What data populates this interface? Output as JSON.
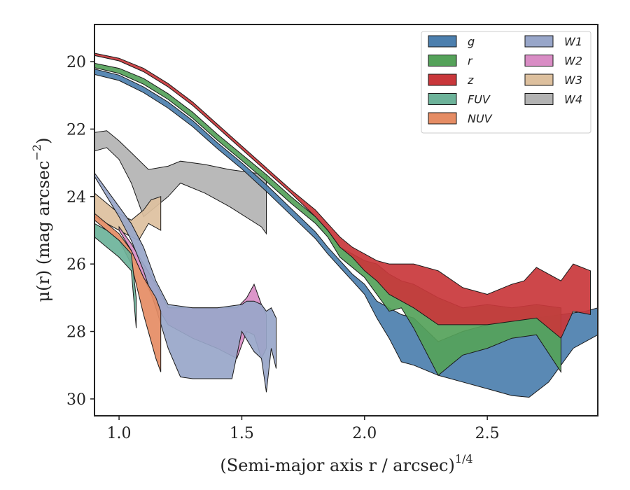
{
  "chart_data": {
    "type": "area",
    "title": "",
    "xlabel": "(Semi-major axis r / arcsec)",
    "xlabel_superscript": "1/4",
    "ylabel": "μ(r) (mag arcsec",
    "ylabel_superscript": "−2",
    "ylabel_tail": ")",
    "xlim": [
      0.9,
      2.95
    ],
    "ylim": [
      30.5,
      18.9
    ],
    "y_inverted": true,
    "xticks": [
      1.0,
      1.5,
      2.0,
      2.5
    ],
    "xtick_labels": [
      "1.0",
      "1.5",
      "2.0",
      "2.5"
    ],
    "yticks": [
      20,
      22,
      24,
      26,
      28,
      30
    ],
    "ytick_labels": [
      "20",
      "22",
      "24",
      "26",
      "28",
      "30"
    ],
    "grid": false,
    "legend_position": "top-right",
    "legend_columns": 2,
    "series": [
      {
        "name": "g",
        "color": "#4c7fae",
        "upper": [
          [
            0.9,
            20.22
          ],
          [
            1.0,
            20.4
          ],
          [
            1.1,
            20.75
          ],
          [
            1.2,
            21.2
          ],
          [
            1.3,
            21.75
          ],
          [
            1.4,
            22.4
          ],
          [
            1.5,
            23.0
          ],
          [
            1.6,
            23.65
          ],
          [
            1.7,
            24.35
          ],
          [
            1.8,
            25.05
          ],
          [
            1.85,
            25.5
          ],
          [
            1.9,
            25.9
          ],
          [
            1.95,
            26.3
          ],
          [
            2.0,
            26.6
          ],
          [
            2.05,
            27.1
          ],
          [
            2.1,
            27.3
          ],
          [
            2.15,
            27.5
          ],
          [
            2.2,
            27.6
          ],
          [
            2.3,
            28.3
          ],
          [
            2.4,
            28.0
          ],
          [
            2.5,
            27.8
          ],
          [
            2.6,
            27.7
          ],
          [
            2.7,
            27.6
          ],
          [
            2.8,
            27.5
          ],
          [
            2.9,
            27.4
          ],
          [
            2.95,
            27.3
          ]
        ],
        "lower": [
          [
            0.9,
            20.38
          ],
          [
            1.0,
            20.56
          ],
          [
            1.1,
            20.92
          ],
          [
            1.2,
            21.38
          ],
          [
            1.3,
            21.93
          ],
          [
            1.4,
            22.58
          ],
          [
            1.5,
            23.18
          ],
          [
            1.6,
            23.85
          ],
          [
            1.7,
            24.55
          ],
          [
            1.8,
            25.25
          ],
          [
            1.85,
            25.7
          ],
          [
            1.9,
            26.1
          ],
          [
            1.95,
            26.5
          ],
          [
            2.0,
            26.9
          ],
          [
            2.05,
            27.6
          ],
          [
            2.1,
            28.2
          ],
          [
            2.15,
            28.9
          ],
          [
            2.2,
            29.0
          ],
          [
            2.3,
            29.3
          ],
          [
            2.4,
            29.5
          ],
          [
            2.5,
            29.7
          ],
          [
            2.6,
            29.9
          ],
          [
            2.67,
            29.95
          ],
          [
            2.75,
            29.5
          ],
          [
            2.85,
            28.5
          ],
          [
            2.95,
            28.1
          ]
        ]
      },
      {
        "name": "r",
        "color": "#55a25a",
        "upper": [
          [
            0.9,
            20.05
          ],
          [
            1.0,
            20.2
          ],
          [
            1.1,
            20.5
          ],
          [
            1.2,
            20.95
          ],
          [
            1.3,
            21.5
          ],
          [
            1.4,
            22.15
          ],
          [
            1.5,
            22.75
          ],
          [
            1.6,
            23.35
          ],
          [
            1.7,
            24.0
          ],
          [
            1.8,
            24.6
          ],
          [
            1.85,
            25.0
          ],
          [
            1.9,
            25.5
          ],
          [
            2.0,
            25.9
          ],
          [
            2.05,
            26.0
          ],
          [
            2.1,
            26.3
          ],
          [
            2.15,
            26.5
          ],
          [
            2.2,
            26.6
          ],
          [
            2.3,
            27.0
          ],
          [
            2.4,
            27.3
          ],
          [
            2.5,
            27.2
          ],
          [
            2.6,
            27.3
          ],
          [
            2.7,
            27.2
          ],
          [
            2.8,
            27.3
          ]
        ],
        "lower": [
          [
            0.9,
            20.18
          ],
          [
            1.0,
            20.35
          ],
          [
            1.1,
            20.67
          ],
          [
            1.2,
            21.12
          ],
          [
            1.3,
            21.68
          ],
          [
            1.4,
            22.33
          ],
          [
            1.5,
            22.93
          ],
          [
            1.6,
            23.55
          ],
          [
            1.7,
            24.2
          ],
          [
            1.8,
            24.8
          ],
          [
            1.85,
            25.2
          ],
          [
            1.9,
            25.8
          ],
          [
            2.0,
            26.4
          ],
          [
            2.05,
            26.9
          ],
          [
            2.1,
            27.4
          ],
          [
            2.15,
            27.3
          ],
          [
            2.2,
            27.9
          ],
          [
            2.3,
            29.3
          ],
          [
            2.4,
            28.7
          ],
          [
            2.5,
            28.5
          ],
          [
            2.6,
            28.2
          ],
          [
            2.7,
            28.1
          ],
          [
            2.8,
            29.2
          ]
        ]
      },
      {
        "name": "z",
        "color": "#c9373b",
        "upper": [
          [
            0.9,
            19.75
          ],
          [
            1.0,
            19.9
          ],
          [
            1.1,
            20.2
          ],
          [
            1.2,
            20.65
          ],
          [
            1.3,
            21.2
          ],
          [
            1.4,
            21.85
          ],
          [
            1.5,
            22.5
          ],
          [
            1.6,
            23.15
          ],
          [
            1.7,
            23.8
          ],
          [
            1.8,
            24.4
          ],
          [
            1.85,
            24.8
          ],
          [
            1.9,
            25.2
          ],
          [
            1.95,
            25.5
          ],
          [
            2.0,
            25.7
          ],
          [
            2.05,
            25.9
          ],
          [
            2.1,
            26.0
          ],
          [
            2.2,
            26.0
          ],
          [
            2.3,
            26.2
          ],
          [
            2.4,
            26.7
          ],
          [
            2.5,
            26.9
          ],
          [
            2.6,
            26.6
          ],
          [
            2.65,
            26.5
          ],
          [
            2.7,
            26.1
          ],
          [
            2.8,
            26.5
          ],
          [
            2.85,
            26.0
          ],
          [
            2.92,
            26.2
          ]
        ],
        "lower": [
          [
            0.9,
            19.82
          ],
          [
            1.0,
            19.98
          ],
          [
            1.1,
            20.3
          ],
          [
            1.2,
            20.75
          ],
          [
            1.3,
            21.3
          ],
          [
            1.4,
            21.95
          ],
          [
            1.5,
            22.6
          ],
          [
            1.6,
            23.25
          ],
          [
            1.7,
            23.9
          ],
          [
            1.8,
            24.6
          ],
          [
            1.85,
            25.0
          ],
          [
            1.9,
            25.5
          ],
          [
            1.95,
            25.8
          ],
          [
            2.0,
            26.2
          ],
          [
            2.05,
            26.5
          ],
          [
            2.1,
            26.9
          ],
          [
            2.2,
            27.3
          ],
          [
            2.3,
            27.8
          ],
          [
            2.4,
            27.8
          ],
          [
            2.5,
            27.8
          ],
          [
            2.6,
            27.7
          ],
          [
            2.7,
            27.6
          ],
          [
            2.8,
            28.2
          ],
          [
            2.85,
            27.4
          ],
          [
            2.92,
            27.5
          ]
        ]
      },
      {
        "name": "FUV",
        "color": "#6db39a",
        "upper": [
          [
            0.9,
            24.8
          ],
          [
            0.95,
            25.0
          ],
          [
            1.0,
            25.3
          ],
          [
            1.05,
            25.7
          ],
          [
            1.07,
            27.0
          ]
        ],
        "lower": [
          [
            0.9,
            25.2
          ],
          [
            0.95,
            25.5
          ],
          [
            1.0,
            25.8
          ],
          [
            1.05,
            26.2
          ],
          [
            1.07,
            27.9
          ]
        ]
      },
      {
        "name": "NUV",
        "color": "#e58c64",
        "upper": [
          [
            0.9,
            24.5
          ],
          [
            0.95,
            24.8
          ],
          [
            1.0,
            25.1
          ],
          [
            1.05,
            25.6
          ],
          [
            1.1,
            26.4
          ],
          [
            1.15,
            27.0
          ],
          [
            1.17,
            27.4
          ]
        ],
        "lower": [
          [
            0.9,
            24.7
          ],
          [
            0.95,
            25.0
          ],
          [
            1.0,
            25.3
          ],
          [
            1.05,
            26.0
          ],
          [
            1.1,
            27.5
          ],
          [
            1.15,
            28.8
          ],
          [
            1.17,
            29.2
          ]
        ]
      },
      {
        "name": "W1",
        "color": "#98a6c9",
        "upper": [
          [
            0.9,
            23.3
          ],
          [
            0.95,
            23.8
          ],
          [
            1.0,
            24.3
          ],
          [
            1.05,
            24.8
          ],
          [
            1.1,
            25.5
          ],
          [
            1.15,
            26.5
          ],
          [
            1.2,
            27.2
          ],
          [
            1.3,
            27.3
          ],
          [
            1.4,
            27.3
          ],
          [
            1.5,
            27.2
          ],
          [
            1.52,
            27.1
          ],
          [
            1.55,
            27.1
          ],
          [
            1.58,
            27.2
          ],
          [
            1.6,
            27.4
          ],
          [
            1.62,
            27.3
          ],
          [
            1.64,
            27.6
          ]
        ],
        "lower": [
          [
            0.9,
            23.4
          ],
          [
            0.95,
            24.0
          ],
          [
            1.0,
            24.6
          ],
          [
            1.05,
            25.3
          ],
          [
            1.1,
            26.2
          ],
          [
            1.15,
            27.3
          ],
          [
            1.2,
            28.5
          ],
          [
            1.25,
            29.35
          ],
          [
            1.3,
            29.4
          ],
          [
            1.4,
            29.4
          ],
          [
            1.46,
            29.4
          ],
          [
            1.5,
            28.0
          ],
          [
            1.55,
            28.6
          ],
          [
            1.58,
            28.8
          ],
          [
            1.6,
            29.8
          ],
          [
            1.62,
            28.5
          ],
          [
            1.64,
            29.1
          ]
        ]
      },
      {
        "name": "W2",
        "color": "#d98dc5",
        "upper": [
          [
            1.0,
            24.9
          ],
          [
            1.05,
            25.4
          ],
          [
            1.1,
            26.0
          ],
          [
            1.15,
            26.6
          ],
          [
            1.2,
            27.3
          ],
          [
            1.3,
            27.3
          ],
          [
            1.4,
            27.3
          ],
          [
            1.48,
            27.3
          ],
          [
            1.52,
            27.0
          ],
          [
            1.55,
            26.6
          ],
          [
            1.58,
            27.2
          ],
          [
            1.6,
            27.5
          ]
        ],
        "lower": [
          [
            1.0,
            25.0
          ],
          [
            1.05,
            25.6
          ],
          [
            1.1,
            26.4
          ],
          [
            1.15,
            27.2
          ],
          [
            1.2,
            27.8
          ],
          [
            1.3,
            28.2
          ],
          [
            1.4,
            28.5
          ],
          [
            1.48,
            28.8
          ],
          [
            1.52,
            28.0
          ],
          [
            1.55,
            28.1
          ],
          [
            1.58,
            28.8
          ],
          [
            1.6,
            28.5
          ]
        ]
      },
      {
        "name": "W3",
        "color": "#ddc09e",
        "upper": [
          [
            0.9,
            23.9
          ],
          [
            0.95,
            24.2
          ],
          [
            1.0,
            24.5
          ],
          [
            1.05,
            24.7
          ],
          [
            1.1,
            24.4
          ],
          [
            1.13,
            24.1
          ],
          [
            1.17,
            24.0
          ]
        ],
        "lower": [
          [
            0.9,
            24.6
          ],
          [
            0.95,
            24.8
          ],
          [
            1.0,
            25.0
          ],
          [
            1.05,
            25.2
          ],
          [
            1.08,
            25.3
          ],
          [
            1.12,
            24.8
          ],
          [
            1.17,
            25.0
          ]
        ]
      },
      {
        "name": "W4",
        "color": "#b3b3b3",
        "upper": [
          [
            0.9,
            22.1
          ],
          [
            0.95,
            22.05
          ],
          [
            1.0,
            22.35
          ],
          [
            1.05,
            22.7
          ],
          [
            1.12,
            23.2
          ],
          [
            1.2,
            23.1
          ],
          [
            1.25,
            22.95
          ],
          [
            1.35,
            23.05
          ],
          [
            1.45,
            23.2
          ],
          [
            1.6,
            23.35
          ]
        ],
        "lower": [
          [
            0.9,
            22.65
          ],
          [
            0.95,
            22.55
          ],
          [
            1.0,
            22.9
          ],
          [
            1.05,
            23.6
          ],
          [
            1.1,
            24.6
          ],
          [
            1.2,
            24.0
          ],
          [
            1.25,
            23.6
          ],
          [
            1.35,
            23.9
          ],
          [
            1.45,
            24.3
          ],
          [
            1.58,
            24.9
          ],
          [
            1.6,
            25.1
          ]
        ]
      }
    ]
  }
}
